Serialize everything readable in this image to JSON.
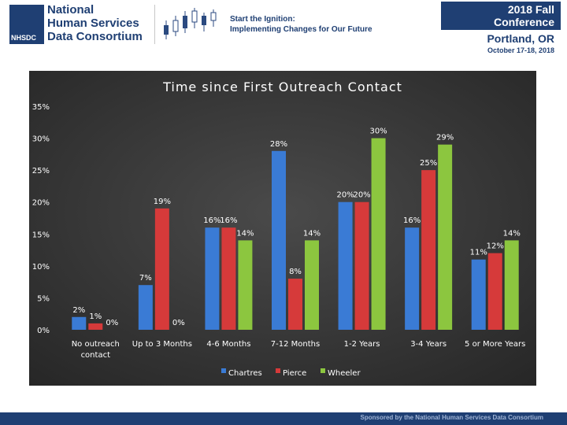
{
  "header": {
    "org_lines": [
      "National",
      "Human Services",
      "Data Consortium"
    ],
    "org_abbr": "NHSDC",
    "tagline_title": "Start the Ignition:",
    "tagline_sub": "Implementing Changes for Our Future",
    "conference_title": "2018 Fall Conference",
    "conference_city": "Portland, OR",
    "conference_dates": "October 17-18, 2018"
  },
  "footer": {
    "text": "Sponsored by the National Human Services Data Consortium"
  },
  "colors": {
    "chartres": "#3a7bd5",
    "pierce": "#d63a3a",
    "wheeler": "#8cc63f",
    "brand": "#1f3f73"
  },
  "chart_data": {
    "type": "bar",
    "title": "Time since First Outreach Contact",
    "categories": [
      "No outreach contact",
      "Up to 3 Months",
      "4-6 Months",
      "7-12 Months",
      "1-2 Years",
      "3-4 Years",
      "5 or More Years"
    ],
    "series": [
      {
        "name": "Chartres",
        "values": [
          2,
          7,
          16,
          28,
          20,
          16,
          11
        ],
        "labels": [
          "2%",
          "7%",
          "16%",
          "28%",
          "20%",
          "16%",
          "11%"
        ]
      },
      {
        "name": "Pierce",
        "values": [
          1,
          19,
          16,
          8,
          20,
          25,
          12
        ],
        "labels": [
          "1%",
          "19%",
          "16%",
          "8%",
          "20%",
          "25%",
          "12%"
        ]
      },
      {
        "name": "Wheeler",
        "values": [
          0,
          0,
          14,
          14,
          30,
          29,
          14
        ],
        "labels": [
          "0%",
          "0%",
          "14%",
          "14%",
          "30%",
          "29%",
          "14%"
        ]
      }
    ],
    "y_ticks": [
      "0%",
      "5%",
      "10%",
      "15%",
      "20%",
      "25%",
      "30%",
      "35%"
    ],
    "ylim": [
      0,
      35
    ],
    "legend": "bottom",
    "grid": false
  }
}
